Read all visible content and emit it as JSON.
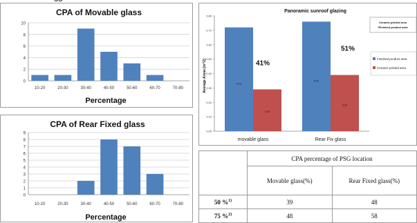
{
  "chart_data": [
    {
      "type": "bar",
      "title": "CPA of Movable glass",
      "xlabel": "Percentage",
      "ylabel": "",
      "ylim": [
        0,
        10
      ],
      "yticks": [
        0,
        2,
        4,
        6,
        8,
        10
      ],
      "grid": true,
      "categories": [
        "10-20",
        "20-30",
        "30-40",
        "40-50",
        "50-60",
        "60-70",
        "70-80"
      ],
      "values": [
        1,
        1,
        9,
        5,
        3,
        1,
        0
      ],
      "color": "#4f81bd"
    },
    {
      "type": "bar",
      "title": "CPA of Rear Fixed glass",
      "xlabel": "Percentage",
      "ylabel": "",
      "ylim": [
        0,
        9
      ],
      "yticks": [
        0,
        1,
        2,
        3,
        4,
        5,
        6,
        7,
        8,
        9
      ],
      "grid": true,
      "categories": [
        "10-20",
        "20-30",
        "30-40",
        "40-50",
        "50-60",
        "60-70",
        "70-80"
      ],
      "values": [
        0,
        0,
        2,
        8,
        7,
        3,
        0
      ],
      "color": "#4f81bd"
    },
    {
      "type": "bar",
      "title": "Panoramic sunroof glazing",
      "xlabel": "",
      "ylabel": "Average Areas [m^2]",
      "ylim": [
        0,
        0.8
      ],
      "yticks": [
        "0.00",
        "0.10",
        "0.20",
        "0.30",
        "0.40",
        "0.50",
        "0.60",
        "0.70",
        "0.80"
      ],
      "grid": false,
      "legend_position": "right",
      "categories": [
        "movable glass",
        "Rear Fix glass"
      ],
      "series": [
        {
          "name": "Finished product area",
          "values": [
            0.72,
            0.76
          ],
          "labels": [
            "0.72",
            "0.76"
          ],
          "color": "#4f81bd"
        },
        {
          "name": "Ceramic printed area",
          "values": [
            0.29,
            0.39
          ],
          "labels": [
            "0.29",
            "0.39"
          ],
          "color": "#c0504d"
        }
      ],
      "annotations": [
        "41%",
        "51%"
      ],
      "corner_note": "Ceramic printed area /Finished product area"
    }
  ],
  "table": {
    "title": "CPA percentage of PSG location",
    "headers": [
      "Movable glass(%)",
      "Rear Fixed glass(%)"
    ],
    "rows": [
      {
        "label": "50 %",
        "marker": "1)",
        "values": [
          "39",
          "48"
        ]
      },
      {
        "label": "75 %",
        "marker": "2)",
        "values": [
          "48",
          "58"
        ]
      }
    ]
  },
  "top_fragment": "ss"
}
